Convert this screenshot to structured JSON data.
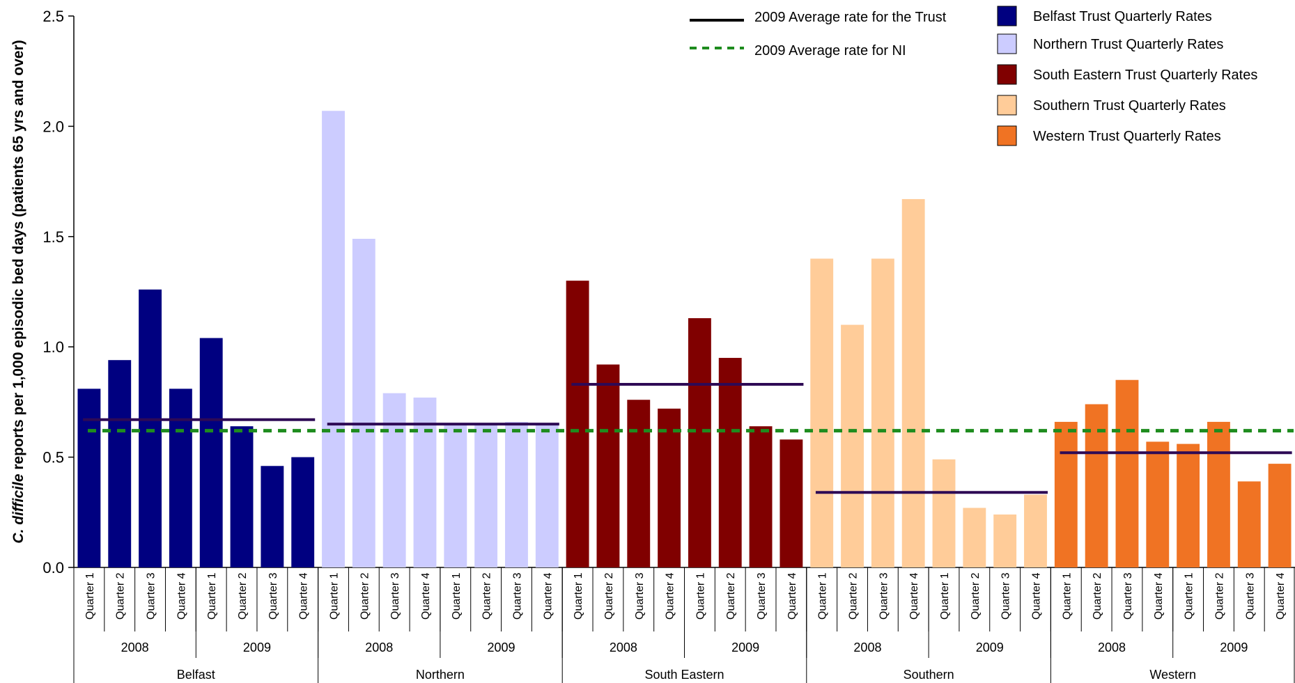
{
  "chart_data": {
    "type": "bar",
    "ylabel": "C. difficile reports per 1,000 episodic bed days (patients 65 yrs and over)",
    "ylabel_italic_part": "C. difficile",
    "ylabel_rest": " reports per 1,000 episodic bed days (patients 65 yrs and over)",
    "ylim": [
      0,
      2.5
    ],
    "yticks": [
      "0.0",
      "0.5",
      "1.0",
      "1.5",
      "2.0",
      "2.5"
    ],
    "grid": false,
    "legend_position": "top-right",
    "quarter_labels": [
      "Quarter 1",
      "Quarter 2",
      "Quarter 3",
      "Quarter 4"
    ],
    "years": [
      "2008",
      "2009"
    ],
    "ni_average_2009": 0.62,
    "ni_line_color": "#1e8c1e",
    "trust_line_color": "#2e0a55",
    "trusts": [
      {
        "name": "Belfast",
        "color": "#000080",
        "avg_2009": 0.67,
        "values_2008": [
          0.81,
          0.94,
          1.26,
          0.81
        ],
        "values_2009": [
          1.04,
          0.64,
          0.46,
          0.5
        ]
      },
      {
        "name": "Northern",
        "color": "#ccccff",
        "avg_2009": 0.65,
        "values_2008": [
          2.07,
          1.49,
          0.79,
          0.77
        ],
        "values_2009": [
          0.65,
          0.65,
          0.66,
          0.65
        ]
      },
      {
        "name": "South Eastern",
        "color": "#800000",
        "avg_2009": 0.83,
        "values_2008": [
          1.3,
          0.92,
          0.76,
          0.72
        ],
        "values_2009": [
          1.13,
          0.95,
          0.64,
          0.58
        ]
      },
      {
        "name": "Southern",
        "color": "#ffcc99",
        "avg_2009": 0.34,
        "values_2008": [
          1.4,
          1.1,
          1.4,
          1.67
        ],
        "values_2009": [
          0.49,
          0.27,
          0.24,
          0.33
        ]
      },
      {
        "name": "Western",
        "color": "#f07323",
        "avg_2009": 0.52,
        "values_2008": [
          0.66,
          0.74,
          0.85,
          0.57
        ],
        "values_2009": [
          0.56,
          0.66,
          0.39,
          0.47
        ]
      }
    ],
    "legend": {
      "line_entries": [
        "2009 Average rate for the Trust",
        "2009 Average rate for NI"
      ],
      "bar_entries": [
        "Belfast  Trust Quarterly Rates",
        "Northern Trust Quarterly Rates",
        "South Eastern Trust Quarterly Rates",
        "Southern Trust Quarterly Rates",
        "Western Trust Quarterly Rates"
      ]
    }
  }
}
